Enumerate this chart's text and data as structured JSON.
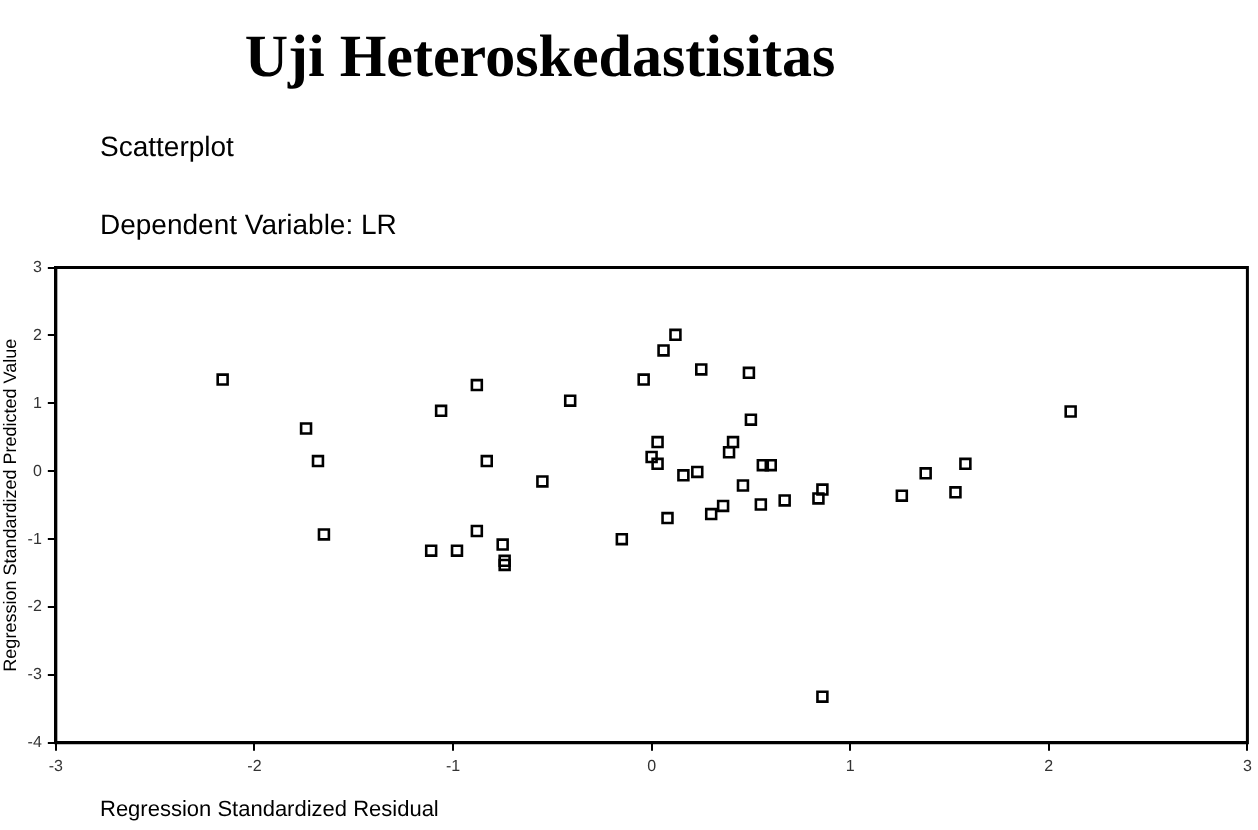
{
  "chart_data": {
    "type": "scatter",
    "title": "Uji Heteroskedastisitas",
    "subtitle": "Scatterplot",
    "annotations": [
      "Dependent Variable: LR"
    ],
    "xlabel": "Regression Standardized Residual",
    "ylabel": "Regression Standardized Predicted Value",
    "marker": "square",
    "grid": false,
    "legend": false,
    "xlim": [
      -3,
      3
    ],
    "xticks": [
      -3,
      -2,
      -1,
      0,
      1,
      2,
      3
    ],
    "ylim": [
      -4,
      3
    ],
    "yticks": [
      -4,
      -3,
      -2,
      -1,
      0,
      1,
      2,
      3
    ],
    "series": [
      {
        "color": "#000000",
        "x": [
          -2.16,
          -1.74,
          -1.68,
          -1.65,
          -1.06,
          -0.88,
          -0.83,
          -0.88,
          -1.11,
          -0.98,
          -0.75,
          -0.74,
          -0.74,
          -0.55,
          -0.41,
          0.12,
          0.06,
          -0.04,
          0.25,
          0.49,
          0.5,
          0.03,
          0.41,
          0.39,
          0.0,
          0.03,
          0.56,
          0.6,
          0.23,
          0.16,
          0.46,
          0.36,
          0.3,
          0.55,
          0.67,
          0.08,
          -0.15,
          0.86,
          0.84,
          1.26,
          1.38,
          1.53,
          1.58,
          2.11,
          0.86
        ],
        "values": [
          1.35,
          0.63,
          0.15,
          -0.93,
          0.89,
          1.27,
          0.15,
          -0.88,
          -1.17,
          -1.17,
          -1.08,
          -1.32,
          -1.38,
          -0.15,
          1.04,
          2.01,
          1.78,
          1.35,
          1.5,
          1.45,
          0.76,
          0.43,
          0.43,
          0.28,
          0.21,
          0.11,
          0.09,
          0.09,
          -0.01,
          -0.06,
          -0.21,
          -0.51,
          -0.63,
          -0.49,
          -0.43,
          -0.69,
          -1.0,
          -0.27,
          -0.4,
          -0.36,
          -0.03,
          -0.31,
          0.11,
          0.88,
          -3.32
        ]
      }
    ]
  }
}
